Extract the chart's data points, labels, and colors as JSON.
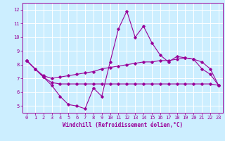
{
  "xlabel": "Windchill (Refroidissement éolien,°C)",
  "xlim": [
    -0.5,
    23.5
  ],
  "ylim": [
    4.5,
    12.5
  ],
  "yticks": [
    5,
    6,
    7,
    8,
    9,
    10,
    11,
    12
  ],
  "xticks": [
    0,
    1,
    2,
    3,
    4,
    5,
    6,
    7,
    8,
    9,
    10,
    11,
    12,
    13,
    14,
    15,
    16,
    17,
    18,
    19,
    20,
    21,
    22,
    23
  ],
  "bg_color": "#cceeff",
  "grid_color": "#ffffff",
  "line_color": "#990099",
  "line1_x": [
    0,
    1,
    2,
    3,
    4,
    5,
    6,
    7,
    8,
    9,
    10,
    11,
    12,
    13,
    14,
    15,
    16,
    17,
    18,
    19,
    20,
    21,
    22,
    23
  ],
  "line1_y": [
    8.3,
    7.7,
    7.1,
    6.5,
    5.7,
    5.1,
    5.0,
    4.8,
    6.3,
    5.7,
    8.2,
    10.6,
    11.9,
    10.0,
    10.8,
    9.6,
    8.7,
    8.2,
    8.6,
    8.5,
    8.4,
    7.7,
    7.3,
    6.5
  ],
  "line2_x": [
    0,
    1,
    2,
    3,
    4,
    5,
    6,
    7,
    8,
    9,
    10,
    11,
    12,
    13,
    14,
    15,
    16,
    17,
    18,
    19,
    20,
    21,
    22,
    23
  ],
  "line2_y": [
    8.3,
    7.7,
    7.1,
    6.7,
    6.6,
    6.6,
    6.6,
    6.6,
    6.6,
    6.6,
    6.6,
    6.6,
    6.6,
    6.6,
    6.6,
    6.6,
    6.6,
    6.6,
    6.6,
    6.6,
    6.6,
    6.6,
    6.6,
    6.5
  ],
  "line3_x": [
    0,
    1,
    2,
    3,
    4,
    5,
    6,
    7,
    8,
    9,
    10,
    11,
    12,
    13,
    14,
    15,
    16,
    17,
    18,
    19,
    20,
    21,
    22,
    23
  ],
  "line3_y": [
    8.3,
    7.7,
    7.2,
    7.0,
    7.1,
    7.2,
    7.3,
    7.4,
    7.5,
    7.7,
    7.8,
    7.9,
    8.0,
    8.1,
    8.2,
    8.2,
    8.3,
    8.3,
    8.4,
    8.5,
    8.4,
    8.2,
    7.7,
    6.5
  ],
  "tick_fontsize": 5.0,
  "xlabel_fontsize": 5.5,
  "marker_size": 1.8,
  "line_width": 0.8
}
